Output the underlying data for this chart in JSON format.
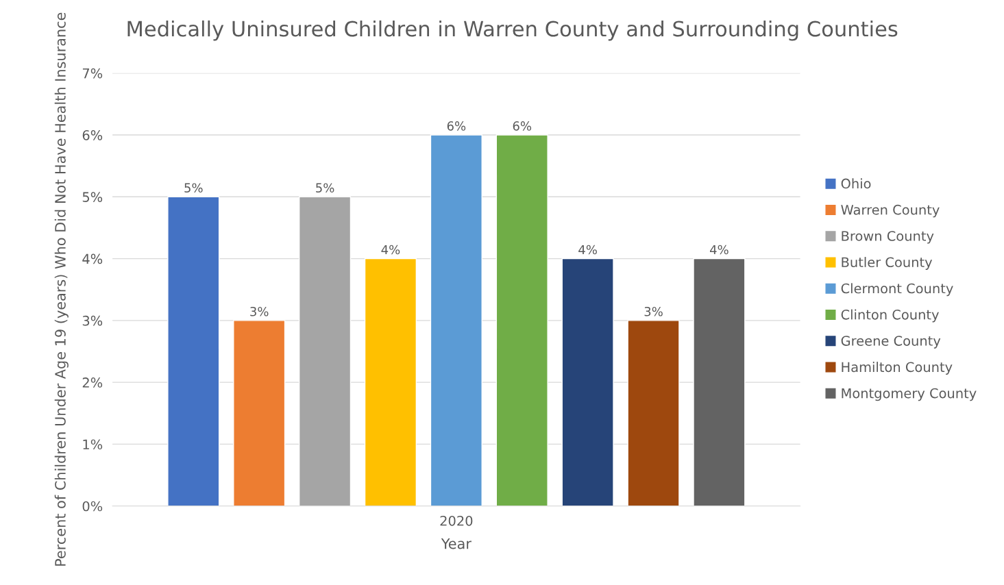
{
  "chart_data": {
    "type": "bar",
    "title": "Medically Uninsured Children in Warren County and Surrounding Counties",
    "xlabel": "Year",
    "ylabel": "Percent of Children Under Age 19 (years) Who Did Not Have Health Insurance",
    "categories": [
      "2020"
    ],
    "series": [
      {
        "name": "Ohio",
        "color": "#4472c4",
        "values": [
          5
        ],
        "value_labels": [
          "5%"
        ]
      },
      {
        "name": "Warren County",
        "color": "#ed7d31",
        "values": [
          3
        ],
        "value_labels": [
          "3%"
        ]
      },
      {
        "name": "Brown County",
        "color": "#a5a5a5",
        "values": [
          5
        ],
        "value_labels": [
          "5%"
        ]
      },
      {
        "name": "Butler County",
        "color": "#ffc000",
        "values": [
          4
        ],
        "value_labels": [
          "4%"
        ]
      },
      {
        "name": "Clermont County",
        "color": "#5b9bd5",
        "values": [
          6
        ],
        "value_labels": [
          "6%"
        ]
      },
      {
        "name": "Clinton County",
        "color": "#70ad47",
        "values": [
          6
        ],
        "value_labels": [
          "6%"
        ]
      },
      {
        "name": "Greene County",
        "color": "#264478",
        "values": [
          4
        ],
        "value_labels": [
          "4%"
        ]
      },
      {
        "name": "Hamilton County",
        "color": "#9e480e",
        "values": [
          3
        ],
        "value_labels": [
          "3%"
        ]
      },
      {
        "name": "Montgomery County",
        "color": "#636363",
        "values": [
          4
        ],
        "value_labels": [
          "4%"
        ]
      }
    ],
    "ylim": [
      0,
      7
    ],
    "yticks": [
      {
        "value": 0,
        "label": "0%"
      },
      {
        "value": 1,
        "label": "1%"
      },
      {
        "value": 2,
        "label": "2%"
      },
      {
        "value": 3,
        "label": "3%"
      },
      {
        "value": 4,
        "label": "4%"
      },
      {
        "value": 5,
        "label": "5%"
      },
      {
        "value": 6,
        "label": "6%"
      },
      {
        "value": 7,
        "label": "7%"
      }
    ],
    "grid": "y",
    "legend": "right"
  }
}
